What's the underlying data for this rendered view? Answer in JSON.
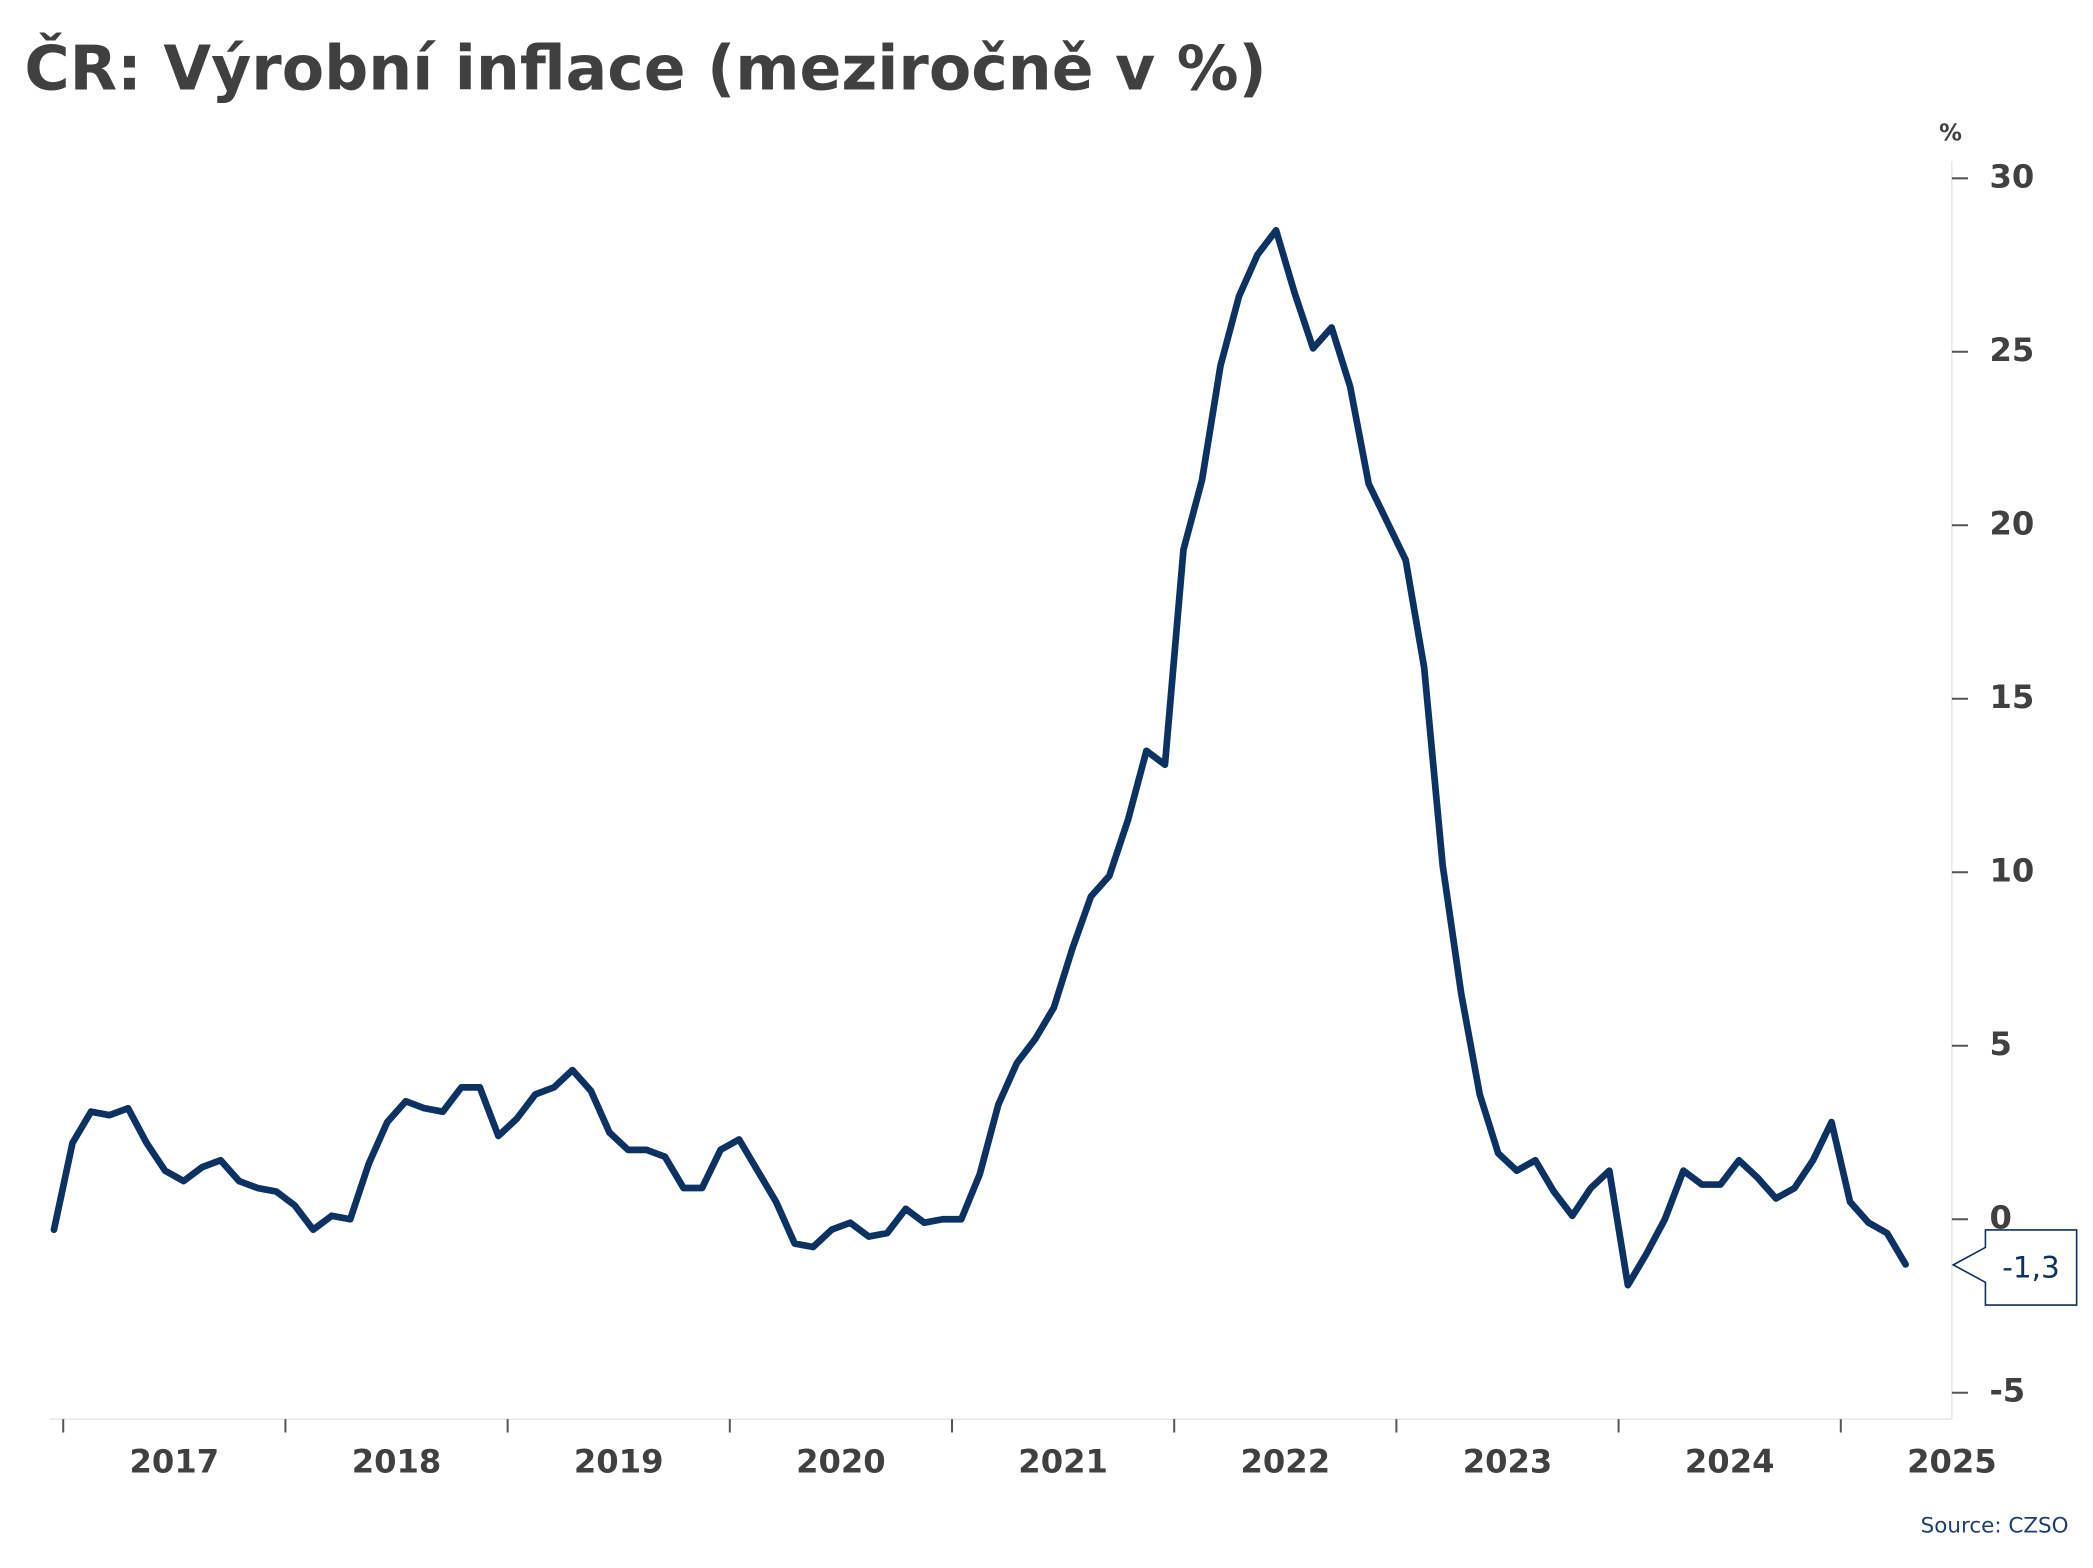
{
  "chart_data": {
    "type": "line",
    "title": "ČR: Výrobní inflace (meziročně v %)",
    "y_unit": "%",
    "source": "Source: CZSO",
    "color": "#0b3262",
    "x": [
      2016.9583,
      2017.0417,
      2017.125,
      2017.2083,
      2017.2917,
      2017.375,
      2017.4583,
      2017.5417,
      2017.625,
      2017.7083,
      2017.7917,
      2017.875,
      2017.9583,
      2018.0417,
      2018.125,
      2018.2083,
      2018.2917,
      2018.375,
      2018.4583,
      2018.5417,
      2018.625,
      2018.7083,
      2018.7917,
      2018.875,
      2018.9583,
      2019.0417,
      2019.125,
      2019.2083,
      2019.2917,
      2019.375,
      2019.4583,
      2019.5417,
      2019.625,
      2019.7083,
      2019.7917,
      2019.875,
      2019.9583,
      2020.0417,
      2020.125,
      2020.2083,
      2020.2917,
      2020.375,
      2020.4583,
      2020.5417,
      2020.625,
      2020.7083,
      2020.7917,
      2020.875,
      2020.9583,
      2021.0417,
      2021.125,
      2021.2083,
      2021.2917,
      2021.375,
      2021.4583,
      2021.5417,
      2021.625,
      2021.7083,
      2021.7917,
      2021.875,
      2021.9583,
      2022.0417,
      2022.125,
      2022.2083,
      2022.2917,
      2022.375,
      2022.4583,
      2022.5417,
      2022.625,
      2022.7083,
      2022.7917,
      2022.875,
      2022.9583,
      2023.0417,
      2023.125,
      2023.2083,
      2023.2917,
      2023.375,
      2023.4583,
      2023.5417,
      2023.625,
      2023.7083,
      2023.7917,
      2023.875,
      2023.9583,
      2024.0417,
      2024.125,
      2024.2083,
      2024.2917,
      2024.375,
      2024.4583,
      2024.5417,
      2024.625,
      2024.7083,
      2024.7917,
      2024.875,
      2024.9583,
      2025.0417,
      2025.125,
      2025.2083,
      2025.2917
    ],
    "values": [
      -0.3,
      2.2,
      3.1,
      3.0,
      3.2,
      2.2,
      1.4,
      1.1,
      1.5,
      1.7,
      1.1,
      0.9,
      0.8,
      0.4,
      -0.3,
      0.1,
      0.0,
      1.6,
      2.8,
      3.4,
      3.2,
      3.1,
      3.8,
      3.8,
      2.4,
      2.9,
      3.6,
      3.8,
      4.3,
      3.7,
      2.5,
      2.0,
      2.0,
      1.8,
      0.9,
      0.9,
      2.0,
      2.3,
      1.4,
      0.5,
      -0.7,
      -0.8,
      -0.3,
      -0.1,
      -0.5,
      -0.4,
      0.3,
      -0.1,
      0.0,
      0.0,
      1.3,
      3.3,
      4.5,
      5.2,
      6.1,
      7.8,
      9.3,
      9.9,
      11.5,
      13.5,
      13.1,
      19.3,
      21.3,
      24.6,
      26.6,
      27.8,
      28.5,
      26.7,
      25.1,
      25.7,
      24.0,
      21.2,
      20.1,
      19.0,
      15.9,
      10.2,
      6.5,
      3.6,
      1.9,
      1.4,
      1.7,
      0.8,
      0.1,
      0.9,
      1.4,
      -1.9,
      -1.0,
      0.0,
      1.4,
      1.0,
      1.0,
      1.7,
      1.2,
      0.6,
      0.9,
      1.7,
      2.8,
      0.5,
      -0.1,
      -0.4,
      -1.3
    ],
    "value_labels": [
      null,
      null,
      null,
      null,
      null,
      null,
      null,
      null,
      null,
      null,
      null,
      null,
      null,
      null,
      null,
      null,
      null,
      null,
      null,
      null,
      null,
      null,
      null,
      null,
      null,
      null,
      null,
      null,
      null,
      null,
      null,
      null,
      null,
      null,
      null,
      null,
      null,
      null,
      null,
      null,
      null,
      null,
      null,
      null,
      null,
      null,
      null,
      null,
      null,
      null,
      null,
      null,
      null,
      null,
      null,
      null,
      null,
      null,
      null,
      null,
      null,
      null,
      null,
      null,
      null,
      null,
      null,
      null,
      null,
      null,
      null,
      null,
      null,
      null,
      null,
      null,
      null,
      null,
      null,
      null,
      null,
      null,
      null,
      null,
      null,
      null,
      null,
      null,
      null,
      null,
      null,
      null,
      null,
      null,
      null,
      null,
      null,
      null,
      null,
      null,
      "-1,3"
    ],
    "xlim": [
      2016.94,
      2025.5
    ],
    "xticks": [
      2017,
      2018,
      2019,
      2020,
      2021,
      2022,
      2023,
      2024,
      2025
    ],
    "ylim": [
      -5.76,
      30.5
    ],
    "yticks": [
      -5,
      0,
      5,
      10,
      15,
      20,
      25,
      30
    ]
  }
}
